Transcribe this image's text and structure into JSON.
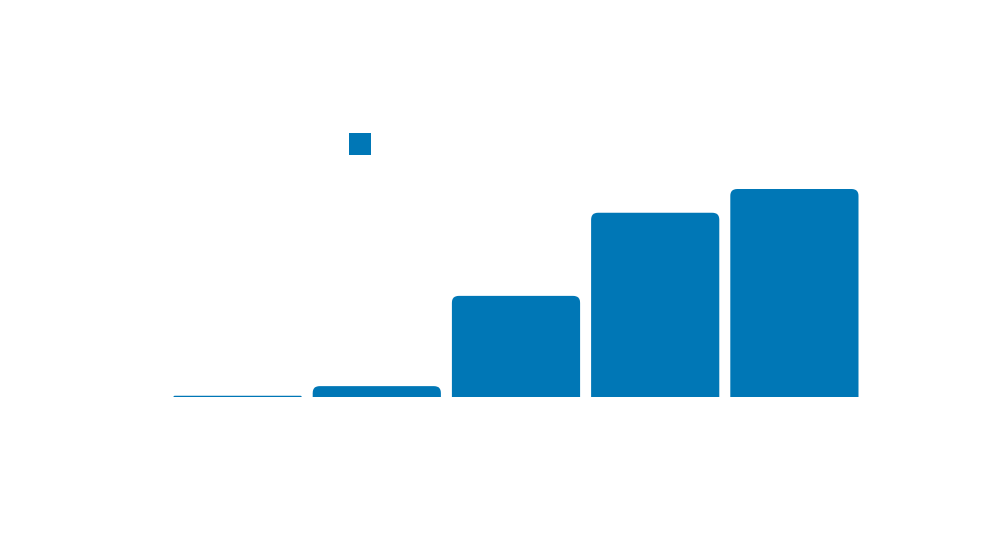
{
  "chart_data": {
    "type": "bar",
    "categories": [
      "",
      "",
      "",
      "",
      ""
    ],
    "series": [
      {
        "values": [
          0.3,
          2.6,
          24.3,
          44.3,
          50.0
        ],
        "color": "#0077b6"
      }
    ],
    "ylim": [
      0,
      50
    ],
    "grid": false,
    "legend": {
      "position": "top",
      "swatch": true
    },
    "bar_corner": "rounded-top"
  }
}
